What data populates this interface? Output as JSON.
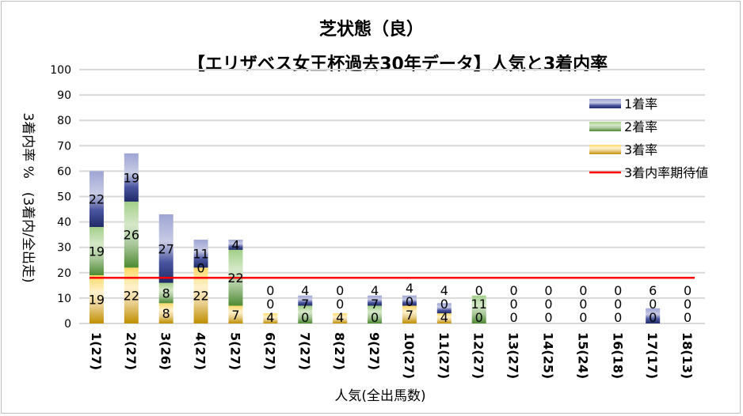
{
  "chart_data": {
    "type": "bar",
    "stacked": true,
    "title": "芝状態（良）",
    "subtitle": "【エリザベス女王杯過去30年データ】人気と3着内率",
    "xlabel": "人気(全出馬数)",
    "ylabel": "3着内率 %　(3着内/全出走)",
    "ylim": [
      0,
      100
    ],
    "yticks": [
      0,
      10,
      20,
      30,
      40,
      50,
      60,
      70,
      80,
      90,
      100
    ],
    "grid": true,
    "legend_position": "right",
    "categories": [
      "1(27)",
      "2(27)",
      "3(26)",
      "4(27)",
      "5(27)",
      "6(27)",
      "7(27)",
      "8(27)",
      "9(27)",
      "10(27)",
      "11(27)",
      "12(27)",
      "13(27)",
      "14(25)",
      "15(24)",
      "16(18)",
      "17(17)",
      "18(13)"
    ],
    "series": [
      {
        "name": "3着率",
        "color": "#d4a52a",
        "values": [
          19,
          22,
          8,
          22,
          7,
          4,
          0,
          4,
          0,
          7,
          4,
          0,
          0,
          0,
          0,
          0,
          0,
          0
        ]
      },
      {
        "name": "2着率",
        "color": "#70ad47",
        "values": [
          19,
          26,
          8,
          0,
          22,
          0,
          7,
          0,
          7,
          0,
          0,
          11,
          0,
          0,
          0,
          0,
          0,
          0
        ]
      },
      {
        "name": "1着率",
        "color": "#5b64b0",
        "values": [
          22,
          19,
          27,
          11,
          4,
          0,
          4,
          0,
          4,
          4,
          4,
          0,
          0,
          0,
          0,
          0,
          6,
          0
        ]
      }
    ],
    "reference_line": {
      "name": "3着内率期待値",
      "value": 18,
      "color": "#ff0000"
    }
  }
}
